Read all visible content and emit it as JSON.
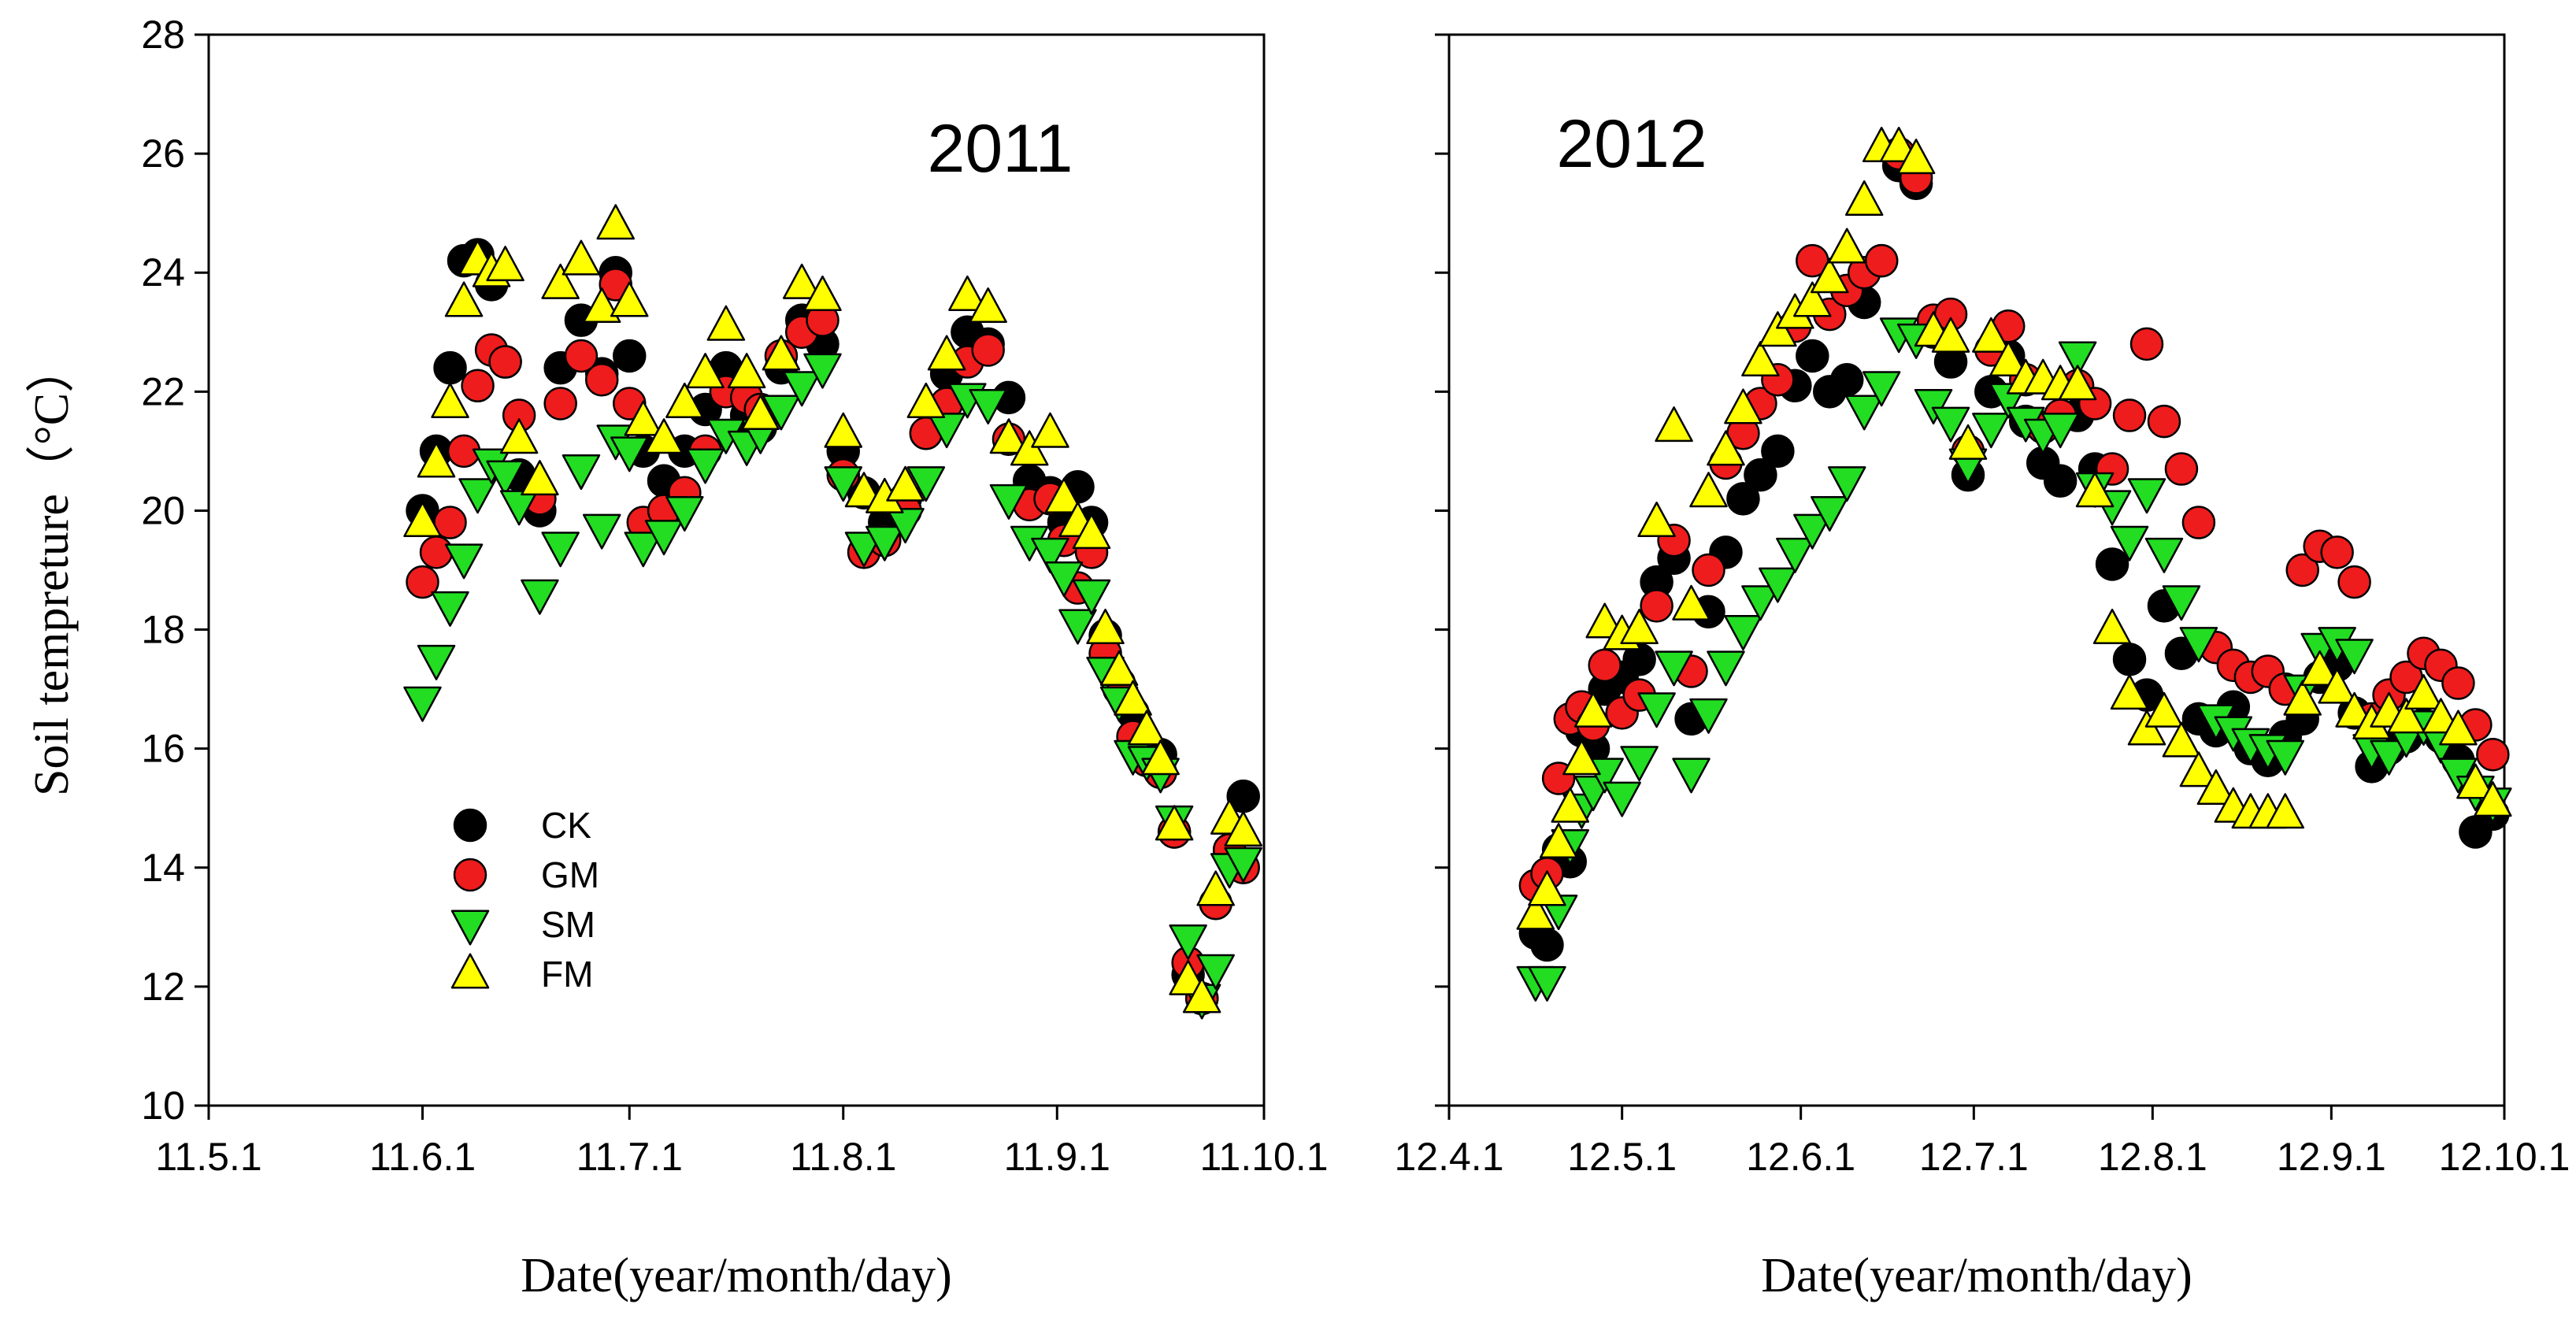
{
  "chart_data": [
    {
      "type": "scatter",
      "title": "2011",
      "xlabel": "Date(year/month/day)",
      "ylabel": "Soil tempreture（°C）",
      "ylim": [
        10,
        28
      ],
      "yticks": [
        10,
        12,
        14,
        16,
        18,
        20,
        22,
        24,
        26,
        28
      ],
      "xlim": [
        0,
        153
      ],
      "x_ticks": [
        {
          "value": 0,
          "label": "11.5.1"
        },
        {
          "value": 31,
          "label": "11.6.1"
        },
        {
          "value": 61,
          "label": "11.7.1"
        },
        {
          "value": 92,
          "label": "11.8.1"
        },
        {
          "value": 123,
          "label": "11.9.1"
        },
        {
          "value": 153,
          "label": "11.10.1"
        }
      ],
      "legend": {
        "position": "lower-left",
        "entries": [
          "CK",
          "GM",
          "SM",
          "FM"
        ]
      },
      "series": [
        {
          "name": "CK",
          "marker": "circle",
          "color": "#000000",
          "x": [
            31,
            33,
            35,
            37,
            39,
            41,
            43,
            45,
            48,
            51,
            54,
            57,
            59,
            61,
            63,
            66,
            69,
            72,
            75,
            78,
            80,
            83,
            86,
            89,
            92,
            95,
            98,
            101,
            104,
            107,
            110,
            113,
            116,
            119,
            122,
            124,
            126,
            128,
            130,
            132,
            134,
            136,
            138,
            140,
            142,
            144,
            146,
            148,
            150
          ],
          "y": [
            20.0,
            21.0,
            22.4,
            24.2,
            24.3,
            23.8,
            22.5,
            20.6,
            20.0,
            22.4,
            23.2,
            22.3,
            24.0,
            22.6,
            21.0,
            20.5,
            21.0,
            21.7,
            22.4,
            21.6,
            21.4,
            22.4,
            23.2,
            22.8,
            21.0,
            20.3,
            19.8,
            20.2,
            21.3,
            22.3,
            23.0,
            22.8,
            21.9,
            20.5,
            20.3,
            19.8,
            20.4,
            19.8,
            17.9,
            17.0,
            16.6,
            16.0,
            15.9,
            14.6,
            12.2,
            11.8,
            13.4,
            14.3,
            15.2
          ]
        },
        {
          "name": "GM",
          "marker": "circle",
          "color": "#ee1c1c",
          "x": [
            31,
            33,
            35,
            37,
            39,
            41,
            43,
            45,
            48,
            51,
            54,
            57,
            59,
            61,
            63,
            66,
            69,
            72,
            75,
            78,
            80,
            83,
            86,
            89,
            92,
            95,
            98,
            101,
            104,
            107,
            110,
            113,
            116,
            119,
            122,
            124,
            126,
            128,
            130,
            132,
            134,
            136,
            138,
            140,
            142,
            144,
            146,
            148,
            150
          ],
          "y": [
            18.8,
            19.3,
            19.8,
            21.0,
            22.1,
            22.7,
            22.5,
            21.6,
            20.2,
            21.8,
            22.6,
            22.2,
            23.8,
            21.8,
            19.8,
            20.0,
            20.3,
            21.0,
            22.0,
            21.9,
            21.7,
            22.6,
            23.0,
            23.2,
            20.6,
            19.3,
            19.5,
            20.0,
            21.3,
            21.8,
            22.5,
            22.7,
            21.2,
            20.1,
            20.2,
            19.5,
            18.7,
            19.3,
            17.6,
            17.1,
            16.2,
            15.8,
            15.6,
            14.6,
            12.4,
            11.8,
            13.4,
            14.3,
            14.0
          ]
        },
        {
          "name": "SM",
          "marker": "triangle-down",
          "color": "#22dd22",
          "x": [
            31,
            33,
            35,
            37,
            39,
            41,
            43,
            45,
            48,
            51,
            54,
            57,
            59,
            61,
            63,
            66,
            69,
            72,
            75,
            78,
            80,
            83,
            86,
            89,
            92,
            95,
            98,
            101,
            104,
            107,
            110,
            113,
            116,
            119,
            122,
            124,
            126,
            128,
            130,
            132,
            134,
            136,
            138,
            140,
            142,
            144,
            146,
            148,
            150
          ],
          "y": [
            16.8,
            17.5,
            18.4,
            19.2,
            20.3,
            20.8,
            20.6,
            20.1,
            18.6,
            19.4,
            20.7,
            19.7,
            21.2,
            21.0,
            19.4,
            19.6,
            20.0,
            20.8,
            21.3,
            21.1,
            21.3,
            21.7,
            22.1,
            22.4,
            20.5,
            19.4,
            19.5,
            19.8,
            20.5,
            21.4,
            21.9,
            21.8,
            20.2,
            19.5,
            19.3,
            18.9,
            18.1,
            18.6,
            17.3,
            16.8,
            15.9,
            15.8,
            15.6,
            14.8,
            12.8,
            11.8,
            12.3,
            14.0,
            14.1
          ]
        },
        {
          "name": "FM",
          "marker": "triangle-up",
          "color": "#ffff00",
          "x": [
            31,
            33,
            35,
            37,
            39,
            41,
            43,
            45,
            48,
            51,
            54,
            57,
            59,
            61,
            63,
            66,
            69,
            72,
            75,
            78,
            80,
            83,
            86,
            89,
            92,
            95,
            98,
            101,
            104,
            107,
            110,
            113,
            116,
            119,
            122,
            124,
            126,
            128,
            130,
            132,
            134,
            136,
            138,
            140,
            142,
            144,
            146,
            148,
            150
          ],
          "y": [
            19.8,
            20.8,
            21.8,
            23.5,
            24.2,
            24.0,
            24.1,
            21.2,
            20.5,
            23.8,
            24.2,
            23.4,
            24.8,
            23.5,
            21.5,
            21.2,
            21.8,
            22.3,
            23.1,
            22.3,
            21.6,
            22.6,
            23.8,
            23.6,
            21.3,
            20.3,
            20.2,
            20.4,
            21.8,
            22.6,
            23.6,
            23.4,
            21.2,
            21.0,
            21.3,
            20.2,
            19.8,
            19.6,
            18.0,
            17.3,
            16.8,
            16.3,
            15.8,
            14.7,
            12.1,
            11.8,
            13.6,
            14.8,
            14.6
          ]
        }
      ]
    },
    {
      "type": "scatter",
      "title": "2012",
      "xlabel": "Date(year/month/day)",
      "ylabel": "",
      "ylim": [
        10,
        28
      ],
      "yticks": [
        10,
        12,
        14,
        16,
        18,
        20,
        22,
        24,
        26,
        28
      ],
      "xlim": [
        0,
        183
      ],
      "x_ticks": [
        {
          "value": 0,
          "label": "12.4.1"
        },
        {
          "value": 30,
          "label": "12.5.1"
        },
        {
          "value": 61,
          "label": "12.6.1"
        },
        {
          "value": 91,
          "label": "12.7.1"
        },
        {
          "value": 122,
          "label": "12.8.1"
        },
        {
          "value": 153,
          "label": "12.9.1"
        },
        {
          "value": 183,
          "label": "12.10.1"
        }
      ],
      "series": [
        {
          "name": "CK",
          "marker": "circle",
          "color": "#000000",
          "x": [
            15,
            17,
            19,
            21,
            23,
            25,
            27,
            30,
            33,
            36,
            39,
            42,
            45,
            48,
            51,
            54,
            57,
            60,
            63,
            66,
            69,
            72,
            75,
            78,
            81,
            84,
            87,
            90,
            94,
            97,
            100,
            103,
            106,
            109,
            112,
            115,
            118,
            121,
            124,
            127,
            130,
            133,
            136,
            139,
            142,
            145,
            148,
            151,
            154,
            157,
            160,
            163,
            166,
            169,
            172,
            175,
            178,
            181
          ],
          "y": [
            12.9,
            12.7,
            14.3,
            14.1,
            16.3,
            16.0,
            17.0,
            17.2,
            17.5,
            18.8,
            19.2,
            16.5,
            18.3,
            19.3,
            20.2,
            20.6,
            21.0,
            22.1,
            22.6,
            22.0,
            22.2,
            23.5,
            24.2,
            25.8,
            25.5,
            23.0,
            22.5,
            20.6,
            22.0,
            22.6,
            21.5,
            20.8,
            20.5,
            21.6,
            20.7,
            19.1,
            17.5,
            16.9,
            18.4,
            17.6,
            16.5,
            16.3,
            16.7,
            16.0,
            15.8,
            16.2,
            16.5,
            17.2,
            17.4,
            16.6,
            15.7,
            16.0,
            16.2,
            16.4,
            16.2,
            15.8,
            14.6,
            14.9
          ]
        },
        {
          "name": "GM",
          "marker": "circle",
          "color": "#ee1c1c",
          "x": [
            15,
            17,
            19,
            21,
            23,
            25,
            27,
            30,
            33,
            36,
            39,
            42,
            45,
            48,
            51,
            54,
            57,
            60,
            63,
            66,
            69,
            72,
            75,
            78,
            81,
            84,
            87,
            90,
            94,
            97,
            100,
            103,
            106,
            109,
            112,
            115,
            118,
            121,
            124,
            127,
            130,
            133,
            136,
            139,
            142,
            145,
            148,
            151,
            154,
            157,
            160,
            163,
            166,
            169,
            172,
            175,
            178,
            181
          ],
          "y": [
            13.7,
            13.9,
            15.5,
            16.5,
            16.7,
            16.4,
            17.4,
            16.6,
            16.9,
            18.4,
            19.5,
            17.3,
            19.0,
            20.8,
            21.3,
            21.8,
            22.2,
            23.1,
            24.2,
            23.3,
            23.7,
            24.0,
            24.2,
            26.0,
            25.6,
            23.2,
            23.3,
            21.0,
            22.7,
            23.1,
            22.2,
            21.4,
            21.6,
            22.1,
            21.8,
            20.7,
            21.6,
            22.8,
            21.5,
            20.7,
            19.8,
            17.7,
            17.4,
            17.2,
            17.3,
            17.0,
            19.0,
            19.4,
            19.3,
            18.8,
            16.5,
            16.9,
            17.2,
            17.6,
            17.4,
            17.1,
            16.4,
            15.9
          ]
        },
        {
          "name": "SM",
          "marker": "triangle-down",
          "color": "#22dd22",
          "x": [
            15,
            17,
            19,
            21,
            23,
            25,
            27,
            30,
            33,
            36,
            39,
            42,
            45,
            48,
            51,
            54,
            57,
            60,
            63,
            66,
            69,
            72,
            75,
            78,
            81,
            84,
            87,
            90,
            94,
            97,
            100,
            103,
            106,
            109,
            112,
            115,
            118,
            121,
            124,
            127,
            130,
            133,
            136,
            139,
            142,
            145,
            148,
            151,
            154,
            157,
            160,
            163,
            166,
            169,
            172,
            175,
            178,
            181
          ],
          "y": [
            12.1,
            12.1,
            13.3,
            14.4,
            15.0,
            15.3,
            15.6,
            15.2,
            15.8,
            16.7,
            17.4,
            15.6,
            16.6,
            17.4,
            18.0,
            18.5,
            18.8,
            19.3,
            19.7,
            20.0,
            20.5,
            21.7,
            22.1,
            23.0,
            22.9,
            21.8,
            21.5,
            20.8,
            21.4,
            21.9,
            21.5,
            21.3,
            21.4,
            22.6,
            20.4,
            20.1,
            19.5,
            20.3,
            19.3,
            18.5,
            17.8,
            16.5,
            16.3,
            16.1,
            16.0,
            15.9,
            17.0,
            17.7,
            17.8,
            17.6,
            16.0,
            15.9,
            16.2,
            16.4,
            16.1,
            15.6,
            15.3,
            15.1
          ]
        },
        {
          "name": "FM",
          "marker": "triangle-up",
          "color": "#ffff00",
          "x": [
            15,
            17,
            19,
            21,
            23,
            25,
            27,
            30,
            33,
            36,
            39,
            42,
            45,
            48,
            51,
            54,
            57,
            60,
            63,
            66,
            69,
            72,
            75,
            78,
            81,
            84,
            87,
            90,
            94,
            97,
            100,
            103,
            106,
            109,
            112,
            115,
            118,
            121,
            124,
            127,
            130,
            133,
            136,
            139,
            142,
            145,
            148,
            151,
            154,
            157,
            160,
            163,
            166,
            169,
            172,
            175,
            178,
            181
          ],
          "y": [
            13.2,
            13.6,
            14.4,
            15.0,
            15.8,
            16.6,
            18.1,
            17.9,
            18.0,
            19.8,
            21.4,
            18.4,
            20.3,
            21.0,
            21.7,
            22.5,
            23.0,
            23.3,
            23.5,
            23.9,
            24.4,
            25.2,
            26.1,
            26.1,
            25.9,
            23.0,
            22.9,
            21.1,
            22.9,
            22.5,
            22.2,
            22.2,
            22.1,
            22.1,
            20.3,
            18.0,
            16.9,
            16.3,
            16.6,
            16.1,
            15.6,
            15.3,
            15.0,
            14.9,
            14.9,
            14.9,
            16.8,
            17.3,
            17.0,
            16.6,
            16.4,
            16.6,
            16.5,
            16.9,
            16.5,
            16.3,
            15.4,
            15.1
          ]
        }
      ]
    }
  ]
}
